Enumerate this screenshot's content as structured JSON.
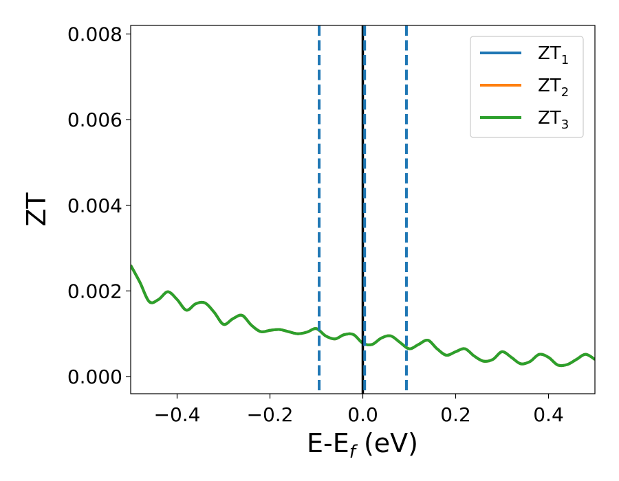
{
  "chart_data": {
    "type": "line",
    "xlabel": "E-E",
    "xlabel_sub": "f",
    "xlabel_suffix": " (eV)",
    "ylabel": "ZT",
    "xlim": [
      -0.5,
      0.5
    ],
    "ylim": [
      -0.0004,
      0.0082
    ],
    "xticks": [
      -0.4,
      -0.2,
      0.0,
      0.2,
      0.4
    ],
    "xtick_labels": [
      "−0.4",
      "−0.2",
      "0.0",
      "0.2",
      "0.4"
    ],
    "yticks": [
      0.0,
      0.002,
      0.004,
      0.006,
      0.008
    ],
    "ytick_labels": [
      "0.000",
      "0.002",
      "0.004",
      "0.006",
      "0.008"
    ],
    "grid": false,
    "legend_position": "top-right",
    "x": [
      -0.5,
      -0.48,
      -0.46,
      -0.44,
      -0.42,
      -0.4,
      -0.38,
      -0.36,
      -0.34,
      -0.32,
      -0.3,
      -0.28,
      -0.26,
      -0.24,
      -0.22,
      -0.2,
      -0.18,
      -0.16,
      -0.14,
      -0.12,
      -0.1,
      -0.08,
      -0.06,
      -0.04,
      -0.02,
      0.0,
      0.02,
      0.04,
      0.06,
      0.08,
      0.1,
      0.12,
      0.14,
      0.16,
      0.18,
      0.2,
      0.22,
      0.24,
      0.26,
      0.28,
      0.3,
      0.32,
      0.34,
      0.36,
      0.38,
      0.4,
      0.42,
      0.44,
      0.46,
      0.48,
      0.5
    ],
    "series": [
      {
        "name": "ZT",
        "sub": "1",
        "color": "#1f77b4",
        "values": [
          0.0026,
          0.0022,
          0.00175,
          0.0018,
          0.00198,
          0.0018,
          0.00155,
          0.0017,
          0.00172,
          0.0015,
          0.00122,
          0.00135,
          0.00143,
          0.0012,
          0.00105,
          0.00108,
          0.0011,
          0.00105,
          0.001,
          0.00104,
          0.00112,
          0.00095,
          0.00088,
          0.00098,
          0.00098,
          0.00078,
          0.00075,
          0.0009,
          0.00095,
          0.0008,
          0.00065,
          0.00075,
          0.00085,
          0.00065,
          0.0005,
          0.00058,
          0.00065,
          0.00048,
          0.00036,
          0.0004,
          0.00058,
          0.00045,
          0.0003,
          0.00035,
          0.00052,
          0.00045,
          0.00027,
          0.00028,
          0.0004,
          0.00052,
          0.0004
        ]
      },
      {
        "name": "ZT",
        "sub": "2",
        "color": "#ff7f0e",
        "values": [
          0.0026,
          0.0022,
          0.00175,
          0.0018,
          0.00198,
          0.0018,
          0.00155,
          0.0017,
          0.00172,
          0.0015,
          0.00122,
          0.00135,
          0.00143,
          0.0012,
          0.00105,
          0.00108,
          0.0011,
          0.00105,
          0.001,
          0.00104,
          0.00112,
          0.00095,
          0.00088,
          0.00098,
          0.00098,
          0.00078,
          0.00075,
          0.0009,
          0.00095,
          0.0008,
          0.00065,
          0.00075,
          0.00085,
          0.00065,
          0.0005,
          0.00058,
          0.00065,
          0.00048,
          0.00036,
          0.0004,
          0.00058,
          0.00045,
          0.0003,
          0.00035,
          0.00052,
          0.00045,
          0.00027,
          0.00028,
          0.0004,
          0.00052,
          0.0004
        ]
      },
      {
        "name": "ZT",
        "sub": "3",
        "color": "#2ca02c",
        "values": [
          0.0026,
          0.0022,
          0.00175,
          0.0018,
          0.00198,
          0.0018,
          0.00155,
          0.0017,
          0.00172,
          0.0015,
          0.00122,
          0.00135,
          0.00143,
          0.0012,
          0.00105,
          0.00108,
          0.0011,
          0.00105,
          0.001,
          0.00104,
          0.00112,
          0.00095,
          0.00088,
          0.00098,
          0.00098,
          0.00078,
          0.00075,
          0.0009,
          0.00095,
          0.0008,
          0.00065,
          0.00075,
          0.00085,
          0.00065,
          0.0005,
          0.00058,
          0.00065,
          0.00048,
          0.00036,
          0.0004,
          0.00058,
          0.00045,
          0.0003,
          0.00035,
          0.00052,
          0.00045,
          0.00027,
          0.00028,
          0.0004,
          0.00052,
          0.0004
        ]
      }
    ],
    "vlines": [
      {
        "x": -0.094,
        "style": "dashed",
        "color": "#1f77b4"
      },
      {
        "x": 0.0,
        "style": "solid",
        "color": "#000000"
      },
      {
        "x": 0.004,
        "style": "dashed",
        "color": "#1f77b4"
      },
      {
        "x": 0.094,
        "style": "dashed",
        "color": "#1f77b4"
      }
    ]
  }
}
